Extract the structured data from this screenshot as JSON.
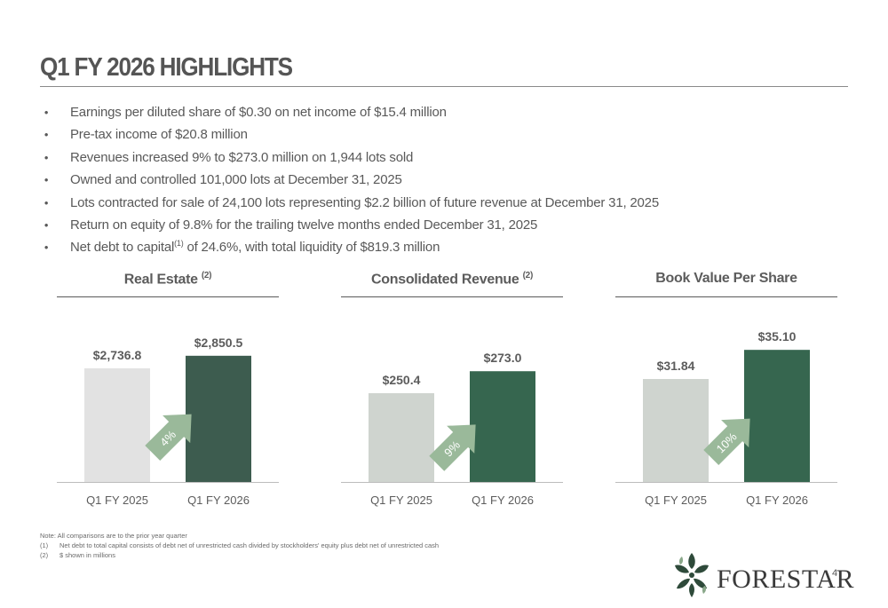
{
  "title": "Q1 FY 2026 HIGHLIGHTS",
  "bullet_glyph": "•",
  "bullets": [
    {
      "text": "Earnings per diluted share of $0.30 on net income of $15.4 million"
    },
    {
      "text": "Pre-tax income of $20.8 million"
    },
    {
      "text": "Revenues increased 9% to $273.0 million on 1,944 lots sold"
    },
    {
      "text": "Owned and controlled 101,000 lots at December 31, 2025"
    },
    {
      "text": "Lots contracted for sale of 24,100 lots representing $2.2 billion of future revenue at December 31, 2025"
    },
    {
      "text": "Return on equity of 9.8% for the trailing twelve months ended December 31, 2025"
    },
    {
      "text_before": "Net debt to capital",
      "sup": "(1)",
      "text_after": " of 24.6%, with total liquidity of $819.3 million"
    }
  ],
  "chart_data": [
    {
      "type": "bar",
      "title": "Real Estate",
      "title_sup": "(2)",
      "categories": [
        "Q1 FY 2025",
        "Q1 FY 2026"
      ],
      "values": [
        2736.8,
        2850.5
      ],
      "value_labels": [
        "$2,736.8",
        "$2,850.5"
      ],
      "change_label": "4%",
      "colors": [
        "#e2e2e2",
        "#3d5c4f"
      ]
    },
    {
      "type": "bar",
      "title": "Consolidated Revenue",
      "title_sup": "(2)",
      "categories": [
        "Q1 FY 2025",
        "Q1 FY 2026"
      ],
      "values": [
        250.4,
        273.0
      ],
      "value_labels": [
        "$250.4",
        "$273.0"
      ],
      "change_label": "9%",
      "colors": [
        "#cfd4cf",
        "#36664f"
      ]
    },
    {
      "type": "bar",
      "title": "Book Value Per Share",
      "title_sup": "",
      "categories": [
        "Q1 FY 2025",
        "Q1 FY 2026"
      ],
      "values": [
        31.84,
        35.1
      ],
      "value_labels": [
        "$31.84",
        "$35.10"
      ],
      "change_label": "10%",
      "colors": [
        "#cfd4cf",
        "#36664f"
      ]
    }
  ],
  "arrow_color": "#9ab99a",
  "notes": {
    "intro": "Note: All comparisons are to the prior year quarter",
    "items": [
      {
        "num": "(1)",
        "text": "Net debt to total capital consists of debt net of unrestricted cash divided by stockholders' equity plus debt net of unrestricted cash"
      },
      {
        "num": "(2)",
        "text": "$ shown in millions"
      }
    ]
  },
  "logo": {
    "text": "FORESTAR",
    "icon": "leaf-cluster-logo"
  },
  "page_number": "4"
}
